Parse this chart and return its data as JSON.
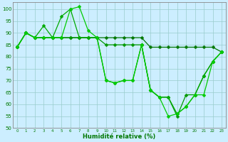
{
  "xlabel": "Humidité relative (%)",
  "series": [
    {
      "x": [
        0,
        1,
        2,
        3,
        4,
        5,
        6,
        7,
        8,
        9,
        10,
        11,
        12,
        13,
        14,
        15,
        16,
        17,
        18,
        19,
        20,
        21,
        22,
        23
      ],
      "y": [
        84,
        90,
        88,
        88,
        88,
        88,
        88,
        88,
        88,
        88,
        88,
        88,
        88,
        88,
        88,
        84,
        84,
        84,
        84,
        84,
        84,
        84,
        84,
        82
      ],
      "color": "#007700"
    },
    {
      "x": [
        0,
        1,
        2,
        3,
        4,
        5,
        6,
        7,
        8,
        9,
        10,
        11,
        12,
        13,
        14,
        15,
        16,
        17,
        18,
        19,
        20,
        21,
        22,
        23
      ],
      "y": [
        84,
        90,
        88,
        88,
        88,
        88,
        88,
        88,
        88,
        88,
        85,
        85,
        85,
        85,
        85,
        66,
        63,
        63,
        55,
        64,
        64,
        72,
        78,
        82
      ],
      "color": "#009900"
    },
    {
      "x": [
        0,
        1,
        2,
        3,
        4,
        5,
        6,
        7,
        8,
        9,
        10,
        11,
        12,
        13,
        14,
        15,
        16,
        17,
        18,
        19,
        20,
        21,
        22,
        23
      ],
      "y": [
        84,
        90,
        88,
        93,
        88,
        97,
        100,
        88,
        88,
        88,
        70,
        69,
        70,
        70,
        85,
        66,
        63,
        63,
        56,
        59,
        64,
        72,
        78,
        82
      ],
      "color": "#00aa00"
    },
    {
      "x": [
        0,
        1,
        2,
        3,
        4,
        5,
        6,
        7,
        8,
        9,
        10,
        11,
        12,
        13,
        14,
        15,
        16,
        17,
        18,
        19,
        20,
        21,
        22,
        23
      ],
      "y": [
        84,
        90,
        88,
        88,
        88,
        88,
        100,
        101,
        91,
        88,
        70,
        69,
        70,
        70,
        85,
        66,
        63,
        55,
        56,
        59,
        64,
        64,
        78,
        82
      ],
      "color": "#00cc00"
    }
  ],
  "xlim": [
    -0.5,
    23.5
  ],
  "ylim": [
    50,
    103
  ],
  "yticks": [
    50,
    55,
    60,
    65,
    70,
    75,
    80,
    85,
    90,
    95,
    100
  ],
  "xticks": [
    0,
    1,
    2,
    3,
    4,
    5,
    6,
    7,
    8,
    9,
    10,
    11,
    12,
    13,
    14,
    15,
    16,
    17,
    18,
    19,
    20,
    21,
    22,
    23
  ],
  "bg_color": "#cceeff",
  "grid_color": "#99cccc",
  "tick_color": "#007700",
  "label_color": "#007700",
  "linewidth": 0.9,
  "markersize": 2.5
}
